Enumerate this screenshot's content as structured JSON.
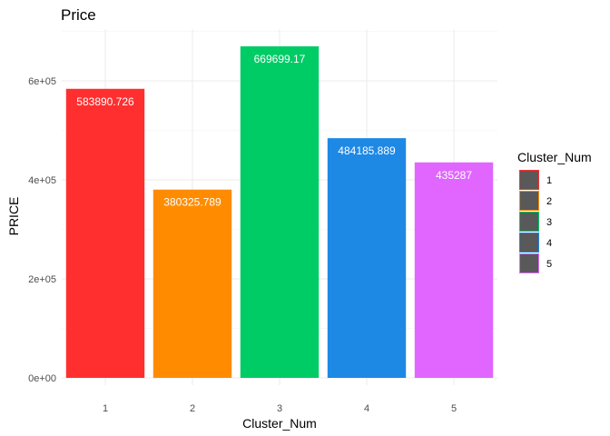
{
  "chart_data": {
    "type": "bar",
    "title": "Price",
    "xlabel": "Cluster_Num",
    "ylabel": "PRICE",
    "categories": [
      "1",
      "2",
      "3",
      "4",
      "5"
    ],
    "values": [
      583890.726,
      380325.789,
      669699.17,
      484185.889,
      435287
    ],
    "data_labels": [
      "583890.726",
      "380325.789",
      "669699.17",
      "484185.889",
      "435287"
    ],
    "colors": [
      "#ff2f2f",
      "#ff8c00",
      "#00cc66",
      "#1e88e5",
      "#e066ff"
    ],
    "ylim": [
      0,
      700000
    ],
    "y_ticks": [
      0,
      200000,
      400000,
      600000
    ],
    "y_tick_labels": [
      "0e+00",
      "2e+05",
      "4e+05",
      "6e+05"
    ],
    "grid": true,
    "legend": {
      "title": "Cluster_Num",
      "placement": "right",
      "entries": [
        "1",
        "2",
        "3",
        "4",
        "5"
      ],
      "fill": "#595959"
    }
  }
}
